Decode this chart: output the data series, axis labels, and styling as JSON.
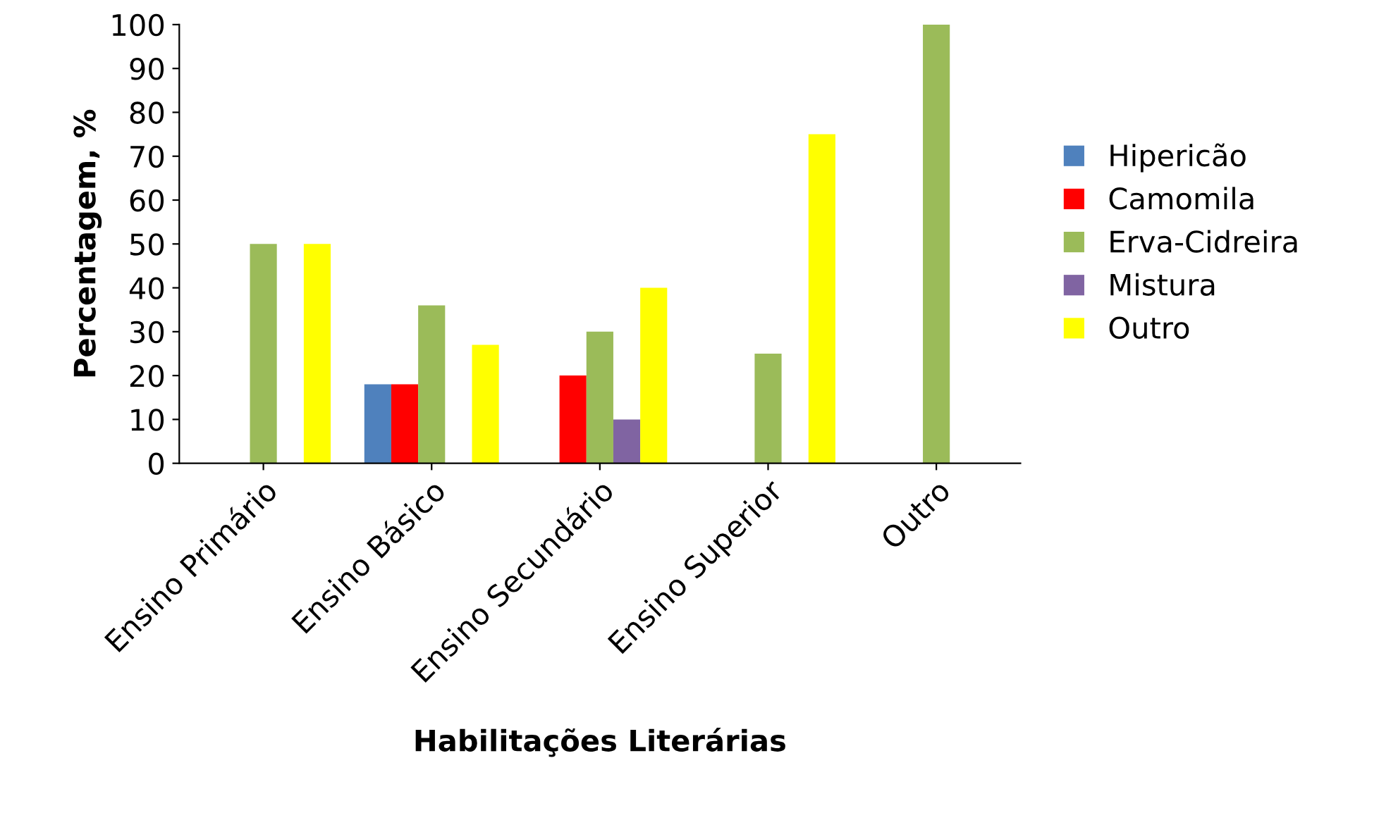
{
  "chart_data": {
    "type": "bar",
    "xlabel": "Habilitações Literárias",
    "ylabel": "Percentagem, %",
    "categories": [
      "Ensino Primário",
      "Ensino Básico",
      "Ensino Secundário",
      "Ensino Superior",
      "Outro"
    ],
    "series": [
      {
        "name": "Hipericão",
        "color": "#4f81bd",
        "values": [
          0,
          18,
          0,
          0,
          0
        ]
      },
      {
        "name": "Camomila",
        "color": "#ff0000",
        "values": [
          0,
          18,
          20,
          0,
          0
        ]
      },
      {
        "name": "Erva-Cidreira",
        "color": "#9bbb59",
        "values": [
          50,
          36,
          30,
          25,
          100
        ]
      },
      {
        "name": "Mistura",
        "color": "#8064a2",
        "values": [
          0,
          0,
          10,
          0,
          0
        ]
      },
      {
        "name": "Outro",
        "color": "#ffff00",
        "values": [
          50,
          27,
          40,
          75,
          0
        ]
      }
    ],
    "ylim": [
      0,
      100
    ],
    "yticks": [
      0,
      10,
      20,
      30,
      40,
      50,
      60,
      70,
      80,
      90,
      100
    ],
    "grid": false,
    "legend": "right"
  }
}
